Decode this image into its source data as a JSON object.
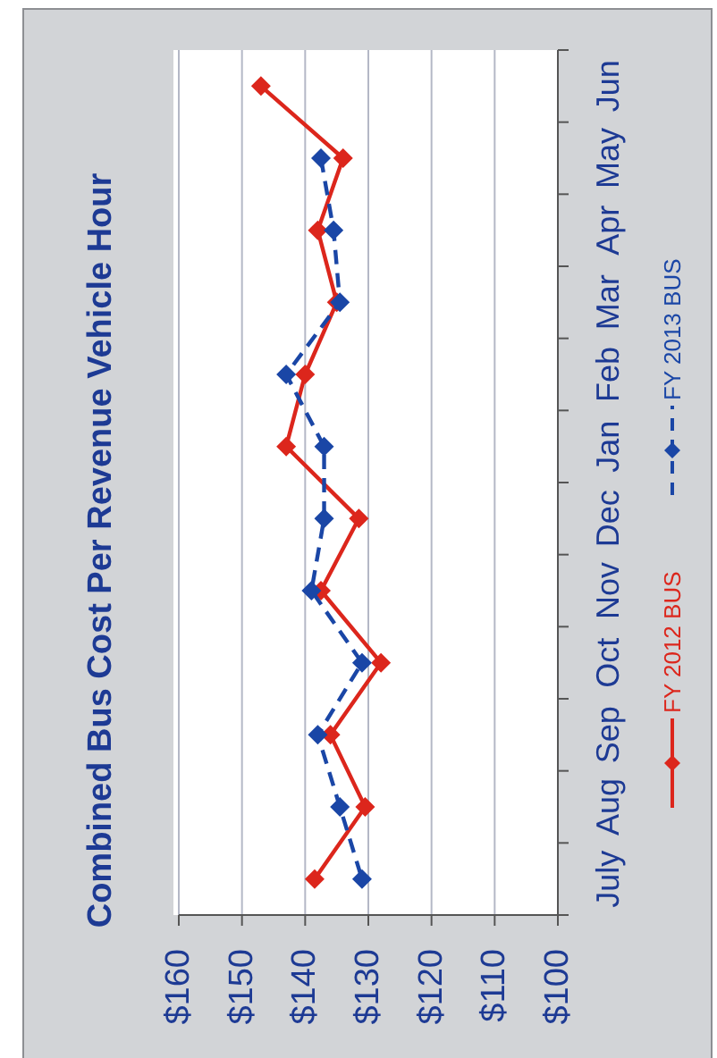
{
  "chart_data": {
    "type": "line",
    "title": "Combined Bus Cost Per Revenue Vehicle Hour",
    "orientation": "horizontal",
    "categories": [
      "Jun",
      "May",
      "Apr",
      "Mar",
      "Feb",
      "Jan",
      "Dec",
      "Nov",
      "Oct",
      "Sep",
      "Aug",
      "July"
    ],
    "series": [
      {
        "name": "FY 2012 BUS",
        "color": "#dc261c",
        "line_style": "solid",
        "values": [
          147,
          134,
          138,
          135,
          140,
          143,
          131.5,
          137.5,
          128,
          136,
          130.5,
          138.5
        ]
      },
      {
        "name": "FY 2013 BUS",
        "color": "#1a46a6",
        "line_style": "dashed",
        "values": [
          null,
          137.5,
          135.5,
          134.5,
          143,
          137,
          137,
          139,
          131,
          138,
          134.5,
          131
        ]
      }
    ],
    "xlim": [
      160,
      100
    ],
    "xticks": [
      {
        "value": 160,
        "label": "$160"
      },
      {
        "value": 150,
        "label": "$150"
      },
      {
        "value": 140,
        "label": "$140"
      },
      {
        "value": 130,
        "label": "$130"
      },
      {
        "value": 120,
        "label": "$120"
      },
      {
        "value": 110,
        "label": "$110"
      },
      {
        "value": 100,
        "label": "$100"
      }
    ],
    "grid": "x",
    "legend": "right",
    "marker": "diamond"
  }
}
